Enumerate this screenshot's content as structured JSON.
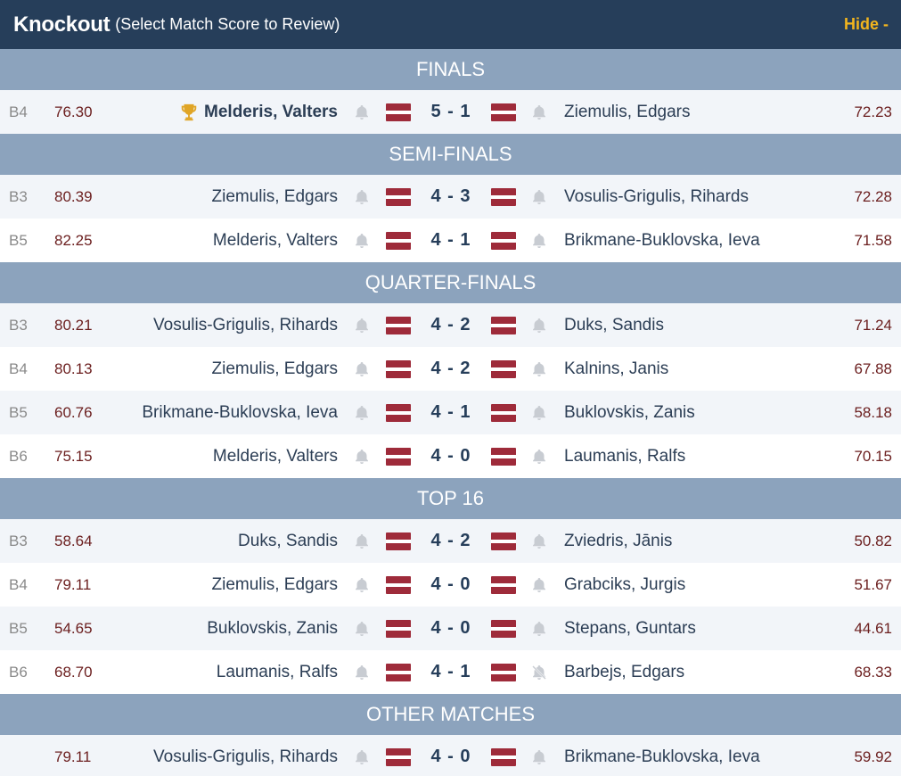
{
  "header": {
    "title": "Knockout",
    "subtitle": "(Select Match Score to Review)",
    "hide_label": "Hide -"
  },
  "sections": [
    {
      "title": "FINALS",
      "rows": [
        {
          "board": "B4",
          "avg1": "76.30",
          "p1": "Melderis, Valters",
          "winner": true,
          "score": "5 - 1",
          "p2": "Ziemulis, Edgars",
          "avg2": "72.23",
          "bell2_off": false
        }
      ]
    },
    {
      "title": "SEMI-FINALS",
      "rows": [
        {
          "board": "B3",
          "avg1": "80.39",
          "p1": "Ziemulis, Edgars",
          "winner": false,
          "score": "4 - 3",
          "p2": "Vosulis-Grigulis, Rihards",
          "avg2": "72.28",
          "bell2_off": false
        },
        {
          "board": "B5",
          "avg1": "82.25",
          "p1": "Melderis, Valters",
          "winner": false,
          "score": "4 - 1",
          "p2": "Brikmane-Buklovska, Ieva",
          "avg2": "71.58",
          "bell2_off": false
        }
      ]
    },
    {
      "title": "QUARTER-FINALS",
      "rows": [
        {
          "board": "B3",
          "avg1": "80.21",
          "p1": "Vosulis-Grigulis, Rihards",
          "winner": false,
          "score": "4 - 2",
          "p2": "Duks, Sandis",
          "avg2": "71.24",
          "bell2_off": false
        },
        {
          "board": "B4",
          "avg1": "80.13",
          "p1": "Ziemulis, Edgars",
          "winner": false,
          "score": "4 - 2",
          "p2": "Kalnins, Janis",
          "avg2": "67.88",
          "bell2_off": false
        },
        {
          "board": "B5",
          "avg1": "60.76",
          "p1": "Brikmane-Buklovska, Ieva",
          "winner": false,
          "score": "4 - 1",
          "p2": "Buklovskis, Zanis",
          "avg2": "58.18",
          "bell2_off": false
        },
        {
          "board": "B6",
          "avg1": "75.15",
          "p1": "Melderis, Valters",
          "winner": false,
          "score": "4 - 0",
          "p2": "Laumanis, Ralfs",
          "avg2": "70.15",
          "bell2_off": false
        }
      ]
    },
    {
      "title": "TOP 16",
      "rows": [
        {
          "board": "B3",
          "avg1": "58.64",
          "p1": "Duks, Sandis",
          "winner": false,
          "score": "4 - 2",
          "p2": "Zviedris, Jānis",
          "avg2": "50.82",
          "bell2_off": false
        },
        {
          "board": "B4",
          "avg1": "79.11",
          "p1": "Ziemulis, Edgars",
          "winner": false,
          "score": "4 - 0",
          "p2": "Grabciks, Jurgis",
          "avg2": "51.67",
          "bell2_off": false
        },
        {
          "board": "B5",
          "avg1": "54.65",
          "p1": "Buklovskis, Zanis",
          "winner": false,
          "score": "4 - 0",
          "p2": "Stepans, Guntars",
          "avg2": "44.61",
          "bell2_off": false
        },
        {
          "board": "B6",
          "avg1": "68.70",
          "p1": "Laumanis, Ralfs",
          "winner": false,
          "score": "4 - 1",
          "p2": "Barbejs, Edgars",
          "avg2": "68.33",
          "bell2_off": true
        }
      ]
    },
    {
      "title": "OTHER MATCHES",
      "rows": [
        {
          "board": "",
          "avg1": "79.11",
          "p1": "Vosulis-Grigulis, Rihards",
          "winner": false,
          "score": "4 - 0",
          "p2": "Brikmane-Buklovska, Ieva",
          "avg2": "59.92",
          "bell2_off": false
        }
      ]
    }
  ]
}
